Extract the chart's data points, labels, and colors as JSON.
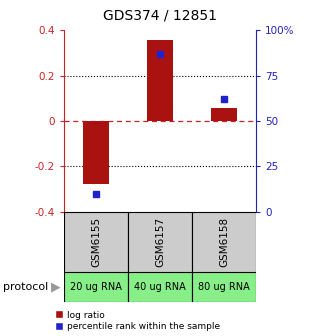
{
  "title": "GDS374 / 12851",
  "samples": [
    "GSM6155",
    "GSM6157",
    "GSM6158"
  ],
  "protocols": [
    "20 ug RNA",
    "40 ug RNA",
    "80 ug RNA"
  ],
  "log_ratios": [
    -0.28,
    0.355,
    0.055
  ],
  "percentile_ranks": [
    10,
    87,
    62
  ],
  "ylim_left": [
    -0.4,
    0.4
  ],
  "ylim_right": [
    0,
    100
  ],
  "yticks_left": [
    -0.4,
    -0.2,
    0.0,
    0.2,
    0.4
  ],
  "yticks_right": [
    0,
    25,
    50,
    75,
    100
  ],
  "bar_color": "#aa1111",
  "dot_color": "#2222cc",
  "hline_color": "#cc2222",
  "grid_color": "#333333",
  "bg_color": "#ffffff",
  "protocol_bg": "#88ee88",
  "sample_bg": "#cccccc",
  "bar_width": 0.4,
  "left_axis_color": "#cc2222",
  "right_axis_color": "#2222bb"
}
